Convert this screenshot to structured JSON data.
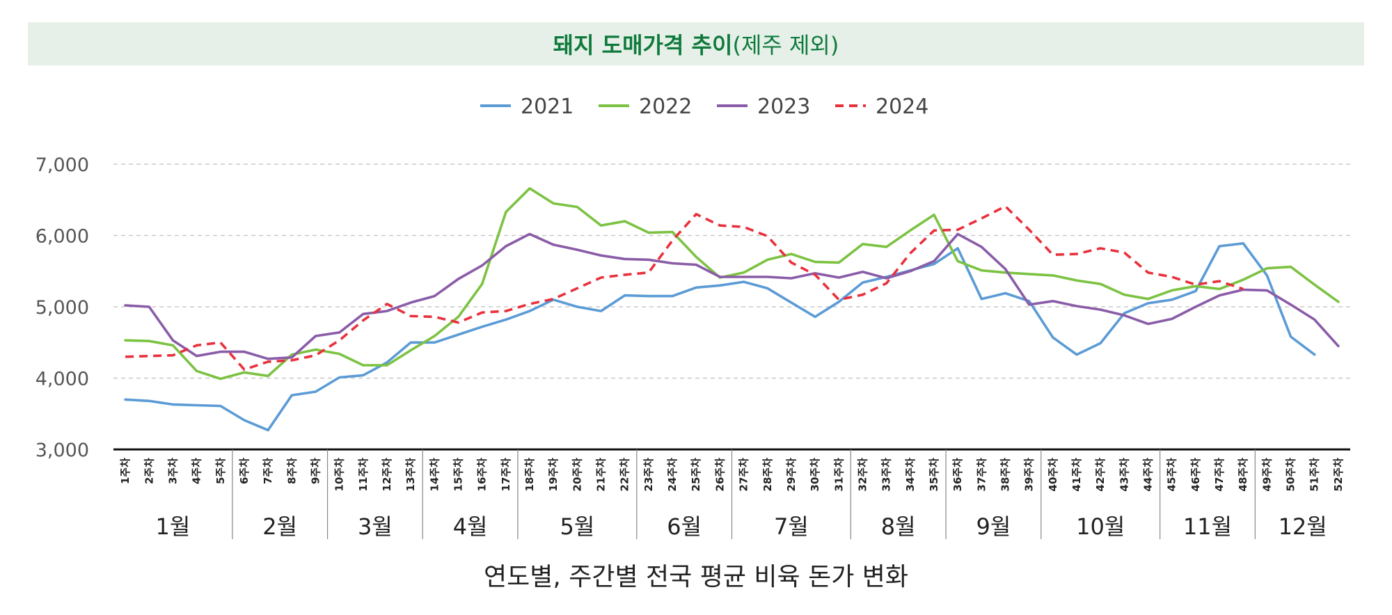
{
  "title": {
    "main": "돼지 도매가격 추이",
    "sub": "(제주 제외)"
  },
  "caption": "연도별, 주간별 전국 평균 비육 돈가 변화",
  "colors": {
    "title_bg": "#e6f0e8",
    "title_text": "#0f7a3c",
    "grid": "#c8c8c8",
    "axis": "#111111"
  },
  "chart_data": {
    "type": "line",
    "ylim": [
      3000,
      7000
    ],
    "yticks": [
      3000,
      4000,
      5000,
      6000,
      7000
    ],
    "ytick_labels": [
      "3,000",
      "4,000",
      "5,000",
      "6,000",
      "7,000"
    ],
    "grid": true,
    "legend_position": "top-center",
    "x": [
      "1주차",
      "2주차",
      "3주차",
      "4주차",
      "5주차",
      "6주차",
      "7주차",
      "8주차",
      "9주차",
      "10주차",
      "11주차",
      "12주차",
      "13주차",
      "14주차",
      "15주차",
      "16주차",
      "17주차",
      "18주차",
      "19주차",
      "20주차",
      "21주차",
      "22주차",
      "23주차",
      "24주차",
      "25주차",
      "26주차",
      "27주차",
      "28주차",
      "29주차",
      "30주차",
      "31주차",
      "32주차",
      "33주차",
      "34주차",
      "35주차",
      "36주차",
      "37주차",
      "38주차",
      "39주차",
      "40주차",
      "41주차",
      "42주차",
      "43주차",
      "44주차",
      "45주차",
      "46주차",
      "47주차",
      "48주차",
      "49주차",
      "50주차",
      "51주차",
      "52주차"
    ],
    "month_groups": [
      {
        "label": "1월",
        "start": 1,
        "end": 5
      },
      {
        "label": "2월",
        "start": 6,
        "end": 9
      },
      {
        "label": "3월",
        "start": 10,
        "end": 13
      },
      {
        "label": "4월",
        "start": 14,
        "end": 17
      },
      {
        "label": "5월",
        "start": 18,
        "end": 22
      },
      {
        "label": "6월",
        "start": 23,
        "end": 26
      },
      {
        "label": "7월",
        "start": 27,
        "end": 31
      },
      {
        "label": "8월",
        "start": 32,
        "end": 35
      },
      {
        "label": "9월",
        "start": 36,
        "end": 39
      },
      {
        "label": "10월",
        "start": 40,
        "end": 44
      },
      {
        "label": "11월",
        "start": 45,
        "end": 48
      },
      {
        "label": "12월",
        "start": 49,
        "end": 52
      }
    ],
    "series": [
      {
        "name": "2021",
        "color": "#5b9bd5",
        "dashed": false,
        "values": [
          3700,
          3680,
          3630,
          3620,
          3610,
          3410,
          3270,
          3760,
          3810,
          4010,
          4040,
          4220,
          4500,
          4500,
          4610,
          4720,
          4820,
          4940,
          5100,
          5000,
          4940,
          5160,
          5150,
          5150,
          5270,
          5300,
          5350,
          5260,
          5060,
          4860,
          5070,
          5340,
          5420,
          5510,
          5600,
          5820,
          5110,
          5190,
          5080,
          4570,
          4330,
          4490,
          4910,
          5050,
          5100,
          5220,
          5850,
          5890,
          5440,
          4580,
          4330,
          null
        ]
      },
      {
        "name": "2022",
        "color": "#7cc242",
        "dashed": false,
        "values": [
          4530,
          4520,
          4460,
          4100,
          3990,
          4080,
          4030,
          4330,
          4400,
          4340,
          4180,
          4180,
          4390,
          4590,
          4860,
          5320,
          6330,
          6660,
          6450,
          6400,
          6140,
          6200,
          6040,
          6050,
          5700,
          5410,
          5480,
          5660,
          5740,
          5630,
          5620,
          5880,
          5840,
          6070,
          6290,
          5640,
          5510,
          5480,
          5460,
          5440,
          5370,
          5320,
          5170,
          5110,
          5230,
          5290,
          5250,
          5380,
          5540,
          5560,
          5310,
          5070
        ]
      },
      {
        "name": "2023",
        "color": "#8a5ca8",
        "dashed": false,
        "values": [
          5020,
          5000,
          4530,
          4310,
          4370,
          4370,
          4270,
          4290,
          4590,
          4640,
          4900,
          4940,
          5060,
          5150,
          5390,
          5580,
          5850,
          6020,
          5870,
          5800,
          5720,
          5670,
          5660,
          5610,
          5590,
          5420,
          5420,
          5420,
          5400,
          5470,
          5410,
          5490,
          5400,
          5500,
          5640,
          6020,
          5840,
          5530,
          5030,
          5080,
          5010,
          4960,
          4880,
          4760,
          4830,
          5000,
          5160,
          5240,
          5230,
          5030,
          4820,
          4450
        ]
      },
      {
        "name": "2024",
        "color": "#e8313d",
        "dashed": true,
        "values": [
          4300,
          4310,
          4320,
          4460,
          4500,
          4120,
          4230,
          4250,
          4320,
          4530,
          4810,
          5040,
          4870,
          4860,
          4780,
          4920,
          4940,
          5040,
          5110,
          5260,
          5410,
          5450,
          5480,
          5930,
          6300,
          6140,
          6120,
          5990,
          5620,
          5450,
          5100,
          5170,
          5330,
          5750,
          6070,
          6080,
          6240,
          6410,
          6080,
          5730,
          5740,
          5820,
          5760,
          5480,
          5420,
          5310,
          5360,
          5250,
          null,
          null,
          null,
          null
        ]
      }
    ]
  }
}
